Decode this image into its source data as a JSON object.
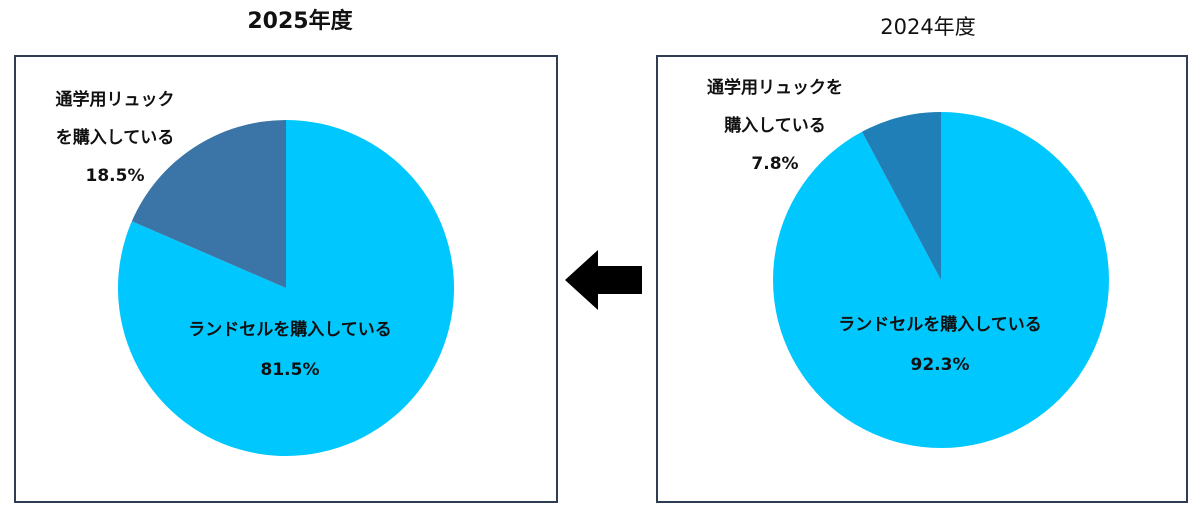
{
  "chart_data": [
    {
      "type": "pie",
      "title": "2025年度",
      "categories": [
        [
          "ランドセルを購入している"
        ],
        [
          "通学用リュック",
          "を購入している"
        ]
      ],
      "values": [
        81.5,
        18.5
      ],
      "value_labels": [
        "81.5%",
        "18.5%"
      ],
      "colors": [
        "#00c8ff",
        "#3b74a6"
      ]
    },
    {
      "type": "pie",
      "title": "2024年度",
      "categories": [
        [
          "ランドセルを購入している"
        ],
        [
          "通学用リュックを",
          "購入している"
        ]
      ],
      "values": [
        92.3,
        7.8
      ],
      "value_labels": [
        "92.3%",
        "7.8%"
      ],
      "colors": [
        "#00c8ff",
        "#1f7fb6"
      ]
    }
  ]
}
